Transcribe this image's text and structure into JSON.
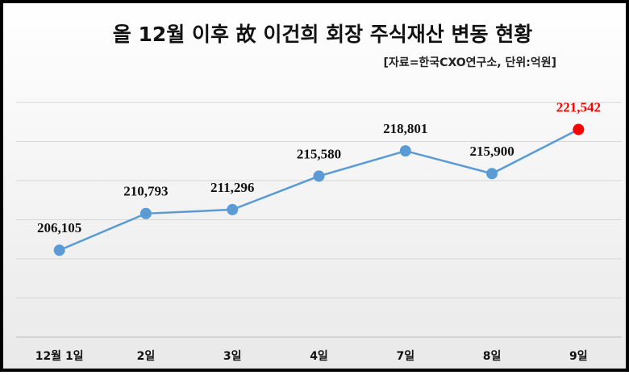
{
  "chart_data": {
    "type": "line",
    "title": "올 12월 이후 故 이건희 회장 주식재산 변동 현황",
    "subtitle": "[자료=한국CXO연구소, 단위:억원]",
    "categories": [
      "12월 1일",
      "2일",
      "3일",
      "4일",
      "7일",
      "8일",
      "9일"
    ],
    "series": [
      {
        "name": "주식재산",
        "color": "#5b9bd5",
        "values": [
          206105,
          210793,
          211296,
          215580,
          218801,
          215900,
          221542
        ],
        "value_labels": [
          "206,105",
          "210,793",
          "211,296",
          "215,580",
          "218,801",
          "215,900",
          "221,542"
        ],
        "marker_colors": [
          "#5b9bd5",
          "#5b9bd5",
          "#5b9bd5",
          "#5b9bd5",
          "#5b9bd5",
          "#5b9bd5",
          "#ff0000"
        ]
      }
    ],
    "ylim": [
      195000,
      225000
    ],
    "yticks": [
      195000,
      200000,
      205000,
      210000,
      215000,
      220000,
      225000
    ],
    "grid": true
  }
}
